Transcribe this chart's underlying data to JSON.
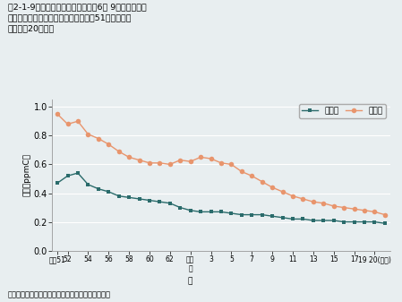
{
  "title": "図2-1-9　非メタン炭化水素の午前6～　9時における年\n　　　平均値の経年変化推移（昭和51年度～平成\n　　　20年度）",
  "ylabel": "濃度（ppmC）",
  "xlabel": "元",
  "source": "資料：環境省「平成２０年度大気汚染状況報告書」",
  "legend_ippan": "一般局",
  "legend_jihai": "自排局",
  "ippan_x": [
    0,
    1,
    2,
    3,
    4,
    5,
    6,
    7,
    8,
    9,
    10,
    11,
    12,
    13,
    14,
    15,
    16,
    17,
    18,
    19,
    20,
    21,
    22,
    23,
    24,
    25,
    26,
    27,
    28,
    29,
    30,
    31,
    32
  ],
  "ippan_y": [
    0.47,
    0.52,
    0.54,
    0.46,
    0.43,
    0.41,
    0.38,
    0.37,
    0.36,
    0.35,
    0.34,
    0.33,
    0.3,
    0.28,
    0.27,
    0.27,
    0.27,
    0.26,
    0.25,
    0.25,
    0.25,
    0.24,
    0.23,
    0.22,
    0.22,
    0.21,
    0.21,
    0.21,
    0.2,
    0.2,
    0.2,
    0.2,
    0.19
  ],
  "jihai_x": [
    0,
    1,
    2,
    3,
    4,
    5,
    6,
    7,
    8,
    9,
    10,
    11,
    12,
    13,
    14,
    15,
    16,
    17,
    18,
    19,
    20,
    21,
    22,
    23,
    24,
    25,
    26,
    27,
    28,
    29,
    30,
    31,
    32
  ],
  "jihai_y": [
    0.95,
    0.88,
    0.9,
    0.81,
    0.78,
    0.74,
    0.69,
    0.65,
    0.63,
    0.61,
    0.61,
    0.6,
    0.63,
    0.62,
    0.65,
    0.64,
    0.61,
    0.6,
    0.55,
    0.52,
    0.48,
    0.44,
    0.41,
    0.38,
    0.36,
    0.34,
    0.33,
    0.31,
    0.3,
    0.29,
    0.28,
    0.27,
    0.25
  ],
  "ippan_color": "#2a6b6b",
  "jihai_color": "#e8956d",
  "bg_color": "#e8eef0",
  "ylim": [
    0.0,
    1.05
  ],
  "yticks": [
    0.0,
    0.2,
    0.4,
    0.6,
    0.8,
    1.0
  ],
  "xtick_positions": [
    0,
    1,
    3,
    5,
    7,
    9,
    11,
    13,
    15,
    17,
    19,
    21,
    23,
    25,
    27,
    29,
    31,
    32
  ],
  "xtick_labels": [
    "昭和51",
    "52",
    "54",
    "56",
    "58",
    "60",
    "62",
    "平成\n元",
    "3",
    "5",
    "7",
    "9",
    "11",
    "13",
    "15",
    "17",
    "19 20(年度)",
    ""
  ]
}
